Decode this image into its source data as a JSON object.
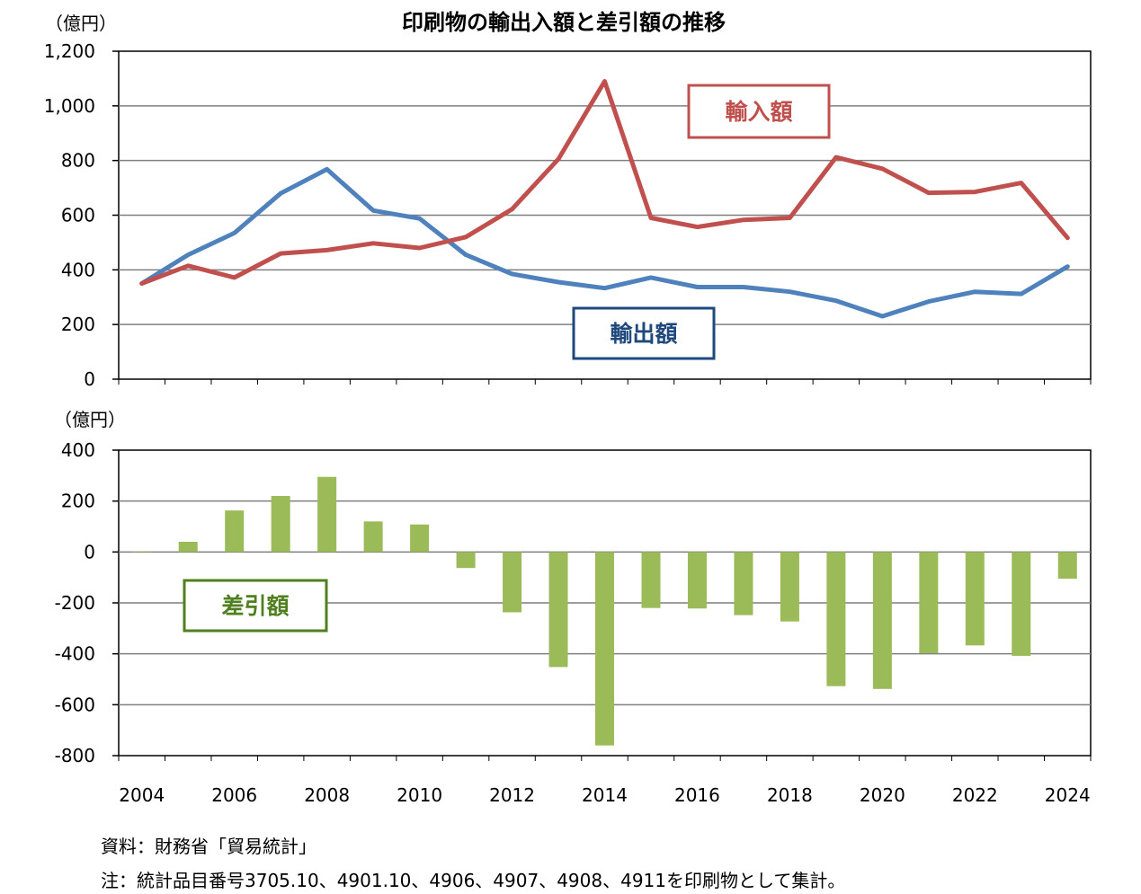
{
  "chart_data": [
    {
      "type": "line",
      "title": "印刷物の輸出入額と差引額の推移",
      "unit": "（億円）",
      "ylim": [
        0,
        1200
      ],
      "y_ticks": [
        "1,200",
        "1,000",
        "800",
        "600",
        "400",
        "200",
        "0"
      ],
      "x": [
        2004,
        2005,
        2006,
        2007,
        2008,
        2009,
        2010,
        2011,
        2012,
        2013,
        2014,
        2015,
        2016,
        2017,
        2018,
        2019,
        2020,
        2021,
        2022,
        2023,
        2024
      ],
      "grid": true,
      "series": [
        {
          "name": "輸入額",
          "color": "#C0504D",
          "values": [
            350,
            415,
            372,
            460,
            472,
            497,
            480,
            520,
            622,
            805,
            1090,
            590,
            557,
            583,
            590,
            812,
            770,
            682,
            685,
            718,
            517
          ]
        },
        {
          "name": "輸出額",
          "color": "#4F81BD",
          "values": [
            350,
            455,
            535,
            680,
            768,
            617,
            588,
            455,
            385,
            355,
            333,
            372,
            337,
            337,
            320,
            287,
            230,
            284,
            320,
            312,
            412
          ]
        }
      ]
    },
    {
      "type": "bar",
      "unit": "（億円）",
      "ylim": [
        -800,
        400
      ],
      "y_ticks": [
        "400",
        "200",
        "0",
        "-200",
        "-400",
        "-600",
        "-800"
      ],
      "x_ticks": [
        "2004",
        "2006",
        "2008",
        "2010",
        "2012",
        "2014",
        "2016",
        "2018",
        "2020",
        "2022",
        "2024"
      ],
      "grid": true,
      "series": [
        {
          "name": "差引額",
          "color": "#9BBB59",
          "values": [
            2,
            40,
            163,
            220,
            295,
            120,
            108,
            -63,
            -237,
            -452,
            -760,
            -220,
            -222,
            -248,
            -273,
            -527,
            -538,
            -398,
            -367,
            -408,
            -105
          ]
        }
      ]
    }
  ],
  "notes": {
    "source": "資料：財務省「貿易統計」",
    "note": "注：統計品目番号3705.10、4901.10、4906、4907、4908、4911を印刷物として集計。"
  }
}
